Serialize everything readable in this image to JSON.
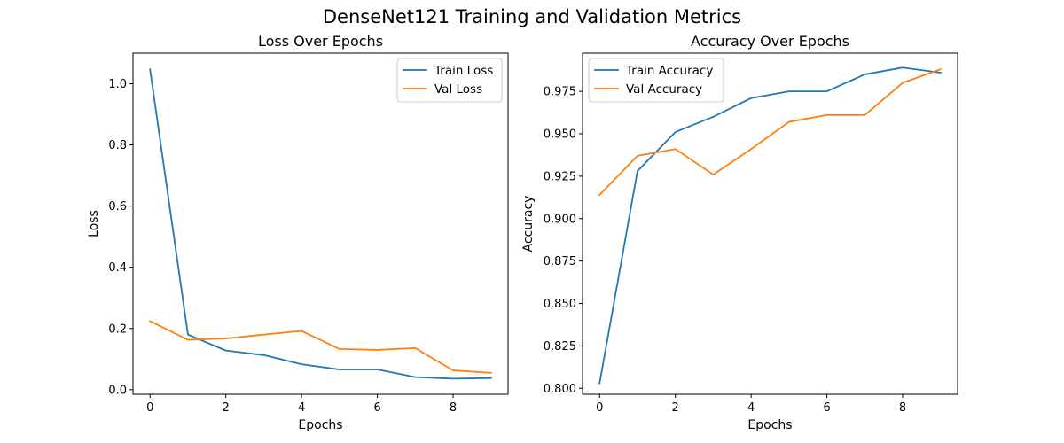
{
  "figure": {
    "title": "DenseNet121 Training and Validation Metrics"
  },
  "chart_data": [
    {
      "type": "line",
      "title": "Loss Over Epochs",
      "xlabel": "Epochs",
      "ylabel": "Loss",
      "xlim": [
        -0.45,
        9.45
      ],
      "ylim": [
        -0.015,
        1.1
      ],
      "xticks": [
        0,
        2,
        4,
        6,
        8
      ],
      "xtick_labels": [
        "0",
        "2",
        "4",
        "6",
        "8"
      ],
      "yticks": [
        0.0,
        0.2,
        0.4,
        0.6,
        0.8,
        1.0
      ],
      "ytick_labels": [
        "0.0",
        "0.2",
        "0.4",
        "0.6",
        "0.8",
        "1.0"
      ],
      "grid": false,
      "legend_position": "upper right",
      "x": [
        0,
        1,
        2,
        3,
        4,
        5,
        6,
        7,
        8,
        9
      ],
      "series": [
        {
          "name": "Train Loss",
          "color": "#1f77b4",
          "values": [
            1.047,
            0.18,
            0.128,
            0.113,
            0.083,
            0.066,
            0.066,
            0.041,
            0.036,
            0.038
          ]
        },
        {
          "name": "Val Loss",
          "color": "#ff7f0e",
          "values": [
            0.224,
            0.163,
            0.167,
            0.18,
            0.192,
            0.133,
            0.13,
            0.136,
            0.063,
            0.055
          ]
        }
      ]
    },
    {
      "type": "line",
      "title": "Accuracy Over Epochs",
      "xlabel": "Epochs",
      "ylabel": "Accuracy",
      "xlim": [
        -0.45,
        9.45
      ],
      "ylim": [
        0.7965,
        0.9975
      ],
      "xticks": [
        0,
        2,
        4,
        6,
        8
      ],
      "xtick_labels": [
        "0",
        "2",
        "4",
        "6",
        "8"
      ],
      "yticks": [
        0.8,
        0.825,
        0.85,
        0.875,
        0.9,
        0.925,
        0.95,
        0.975
      ],
      "ytick_labels": [
        "0.800",
        "0.825",
        "0.850",
        "0.875",
        "0.900",
        "0.925",
        "0.950",
        "0.975"
      ],
      "grid": false,
      "legend_position": "upper left",
      "x": [
        0,
        1,
        2,
        3,
        4,
        5,
        6,
        7,
        8,
        9
      ],
      "series": [
        {
          "name": "Train Accuracy",
          "color": "#1f77b4",
          "values": [
            0.803,
            0.928,
            0.951,
            0.96,
            0.971,
            0.975,
            0.975,
            0.985,
            0.989,
            0.986
          ]
        },
        {
          "name": "Val Accuracy",
          "color": "#ff7f0e",
          "values": [
            0.914,
            0.937,
            0.941,
            0.926,
            0.941,
            0.957,
            0.961,
            0.961,
            0.98,
            0.988
          ]
        }
      ]
    }
  ]
}
